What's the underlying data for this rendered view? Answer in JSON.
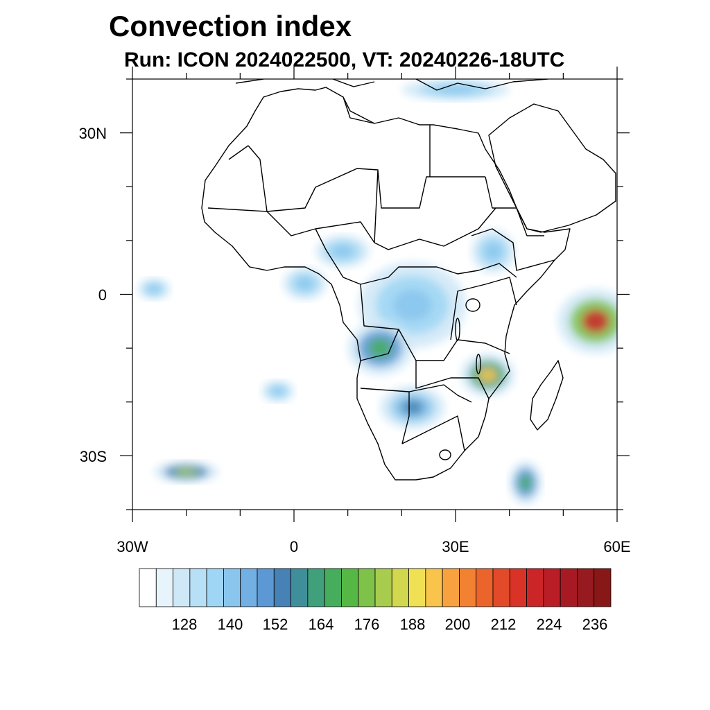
{
  "title": "Convection index",
  "subtitle": "Run: ICON 2024022500,  VT: 20240226-18UTC",
  "axes": {
    "lat_labels": [
      "30N",
      "0",
      "30S"
    ],
    "lon_labels": [
      "30W",
      "0",
      "30E",
      "60E"
    ]
  },
  "colorbar": {
    "labels": [
      "128",
      "140",
      "152",
      "164",
      "176",
      "188",
      "200",
      "212",
      "224",
      "236"
    ],
    "colors": [
      "#ffffff",
      "#e8f4fb",
      "#cfe8f7",
      "#b7dff5",
      "#9fd6f5",
      "#8ac5ed",
      "#72afe3",
      "#5c98d3",
      "#4682b5",
      "#3f8f9a",
      "#40a07b",
      "#46ad5c",
      "#55b845",
      "#7ec24a",
      "#a8cc4e",
      "#d2d84e",
      "#f0e054",
      "#f8c44c",
      "#f7a23f",
      "#f28232",
      "#eb642c",
      "#e24a29",
      "#d93328",
      "#cc2528",
      "#bb1d26",
      "#a81a23",
      "#961a1f",
      "#881818"
    ]
  },
  "chart_data": {
    "type": "heatmap",
    "title": "Convection index",
    "subtitle": "Run: ICON 2024022500,  VT: 20240226-18UTC",
    "lon_range": [
      -30,
      60
    ],
    "lat_range": [
      -40,
      40
    ],
    "lon_ticks": [
      -30,
      0,
      30,
      60
    ],
    "lat_ticks": [
      30,
      0,
      -30
    ],
    "colorbar_levels": [
      128,
      140,
      152,
      164,
      176,
      188,
      200,
      212,
      224,
      236
    ],
    "features": [
      {
        "name": "eastern-indian-ocean",
        "lon": 56,
        "lat": -5,
        "rx": 7,
        "ry": 6,
        "value": 212
      },
      {
        "name": "mozambique-malawi",
        "lon": 36,
        "lat": -15,
        "rx": 5,
        "ry": 4,
        "value": 188
      },
      {
        "name": "congo-basin",
        "lon": 22,
        "lat": -2,
        "rx": 10,
        "ry": 8,
        "value": 140
      },
      {
        "name": "angola",
        "lon": 16,
        "lat": -10,
        "rx": 6,
        "ry": 5,
        "value": 164
      },
      {
        "name": "botswana-namibia",
        "lon": 22,
        "lat": -21,
        "rx": 6,
        "ry": 4,
        "value": 152
      },
      {
        "name": "nigeria-cameroon",
        "lon": 9,
        "lat": 8,
        "rx": 5,
        "ry": 3,
        "value": 140
      },
      {
        "name": "ethiopia",
        "lon": 37,
        "lat": 8,
        "rx": 4,
        "ry": 4,
        "value": 140
      },
      {
        "name": "gulf-of-guinea",
        "lon": 2,
        "lat": 2,
        "rx": 4,
        "ry": 3,
        "value": 140
      },
      {
        "name": "atlantic-eddy",
        "lon": -3,
        "lat": -18,
        "rx": 3,
        "ry": 2,
        "value": 140
      },
      {
        "name": "southwest-atlantic-band",
        "lon": -20,
        "lat": -33,
        "rx": 6,
        "ry": 2,
        "value": 176
      },
      {
        "name": "southeast-band",
        "lon": 43,
        "lat": -35,
        "rx": 3,
        "ry": 4,
        "value": 164
      },
      {
        "name": "mediterranean-north",
        "lon": 30,
        "lat": 38,
        "rx": 10,
        "ry": 2,
        "value": 140
      },
      {
        "name": "equatorial-atlantic",
        "lon": -26,
        "lat": 1,
        "rx": 3,
        "ry": 2,
        "value": 140
      }
    ]
  }
}
